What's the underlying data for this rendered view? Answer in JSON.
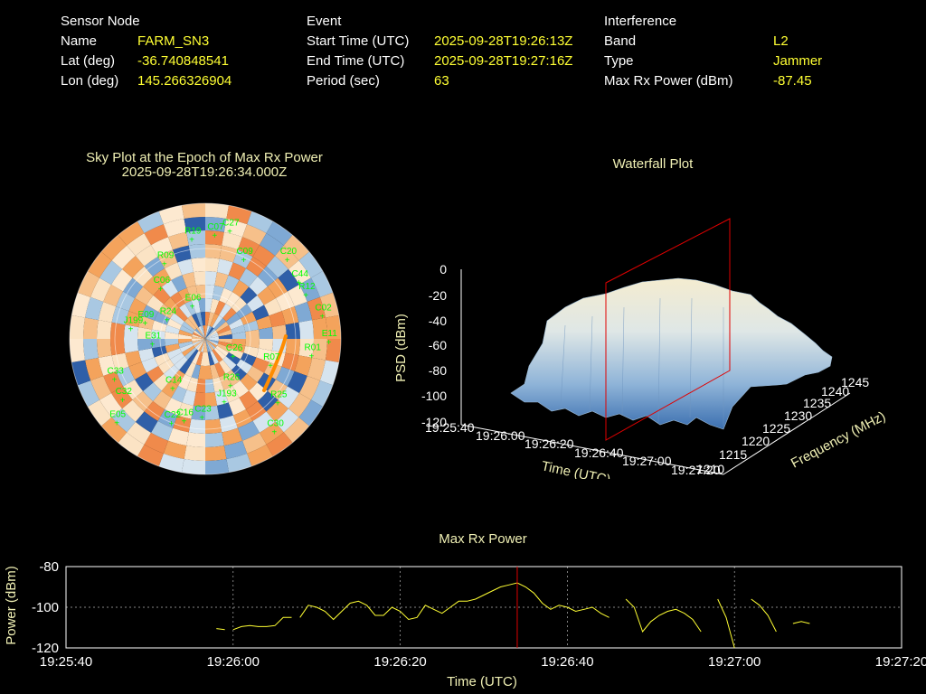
{
  "header": {
    "sensor": {
      "heading": "Sensor Node",
      "rows": [
        {
          "label": "Name",
          "value": "FARM_SN3"
        },
        {
          "label": "Lat (deg)",
          "value": "-36.740848541"
        },
        {
          "label": "Lon (deg)",
          "value": "145.266326904"
        }
      ]
    },
    "event": {
      "heading": "Event",
      "rows": [
        {
          "label": "Start Time (UTC)",
          "value": "2025-09-28T19:26:13Z"
        },
        {
          "label": "End Time (UTC)",
          "value": "2025-09-28T19:27:16Z"
        },
        {
          "label": "Period (sec)",
          "value": "63"
        }
      ]
    },
    "interference": {
      "heading": "Interference",
      "rows": [
        {
          "label": "Band",
          "value": "L2"
        },
        {
          "label": "Type",
          "value": "Jammer"
        },
        {
          "label": "Max Rx Power (dBm)",
          "value": "-87.45"
        }
      ]
    }
  },
  "skyplot": {
    "title": "Sky Plot at the Epoch of Max Rx Power",
    "subtitle": "2025-09-28T19:26:34.000Z",
    "satellites": [
      "E11",
      "E05",
      "C07",
      "C30",
      "J199",
      "C44",
      "C16",
      "R09",
      "R07",
      "C33",
      "C09",
      "J193",
      "R24",
      "C02",
      "C14",
      "R19",
      "R25",
      "E31",
      "C20",
      "C23",
      "C06",
      "R01",
      "C32",
      "C27",
      "R26",
      "E09",
      "R12",
      "C22",
      "E06",
      "C26"
    ]
  },
  "waterfall": {
    "title": "Waterfall Plot",
    "zlabel": "PSD (dBm)",
    "xlabel": "Time (UTC)",
    "ylabel": "Frequency (MHz)"
  },
  "chart_data": [
    {
      "type": "line",
      "title": "Max Rx Power",
      "xlabel": "Time (UTC)",
      "ylabel": "Power (dBm)",
      "xlim": [
        "19:25:40",
        "19:27:20"
      ],
      "ylim": [
        -120,
        -80
      ],
      "xticks": [
        "19:25:40",
        "19:26:00",
        "19:26:20",
        "19:26:40",
        "19:27:00",
        "19:27:20"
      ],
      "yticks": [
        -80,
        -100,
        -120
      ],
      "grid": true,
      "max_marker_time": "19:26:34",
      "segments": [
        [
          [
            "19:25:58",
            -110.5
          ],
          [
            "19:25:59",
            -111
          ]
        ],
        [
          [
            "19:26:00",
            -111
          ],
          [
            "19:26:01",
            -109.5
          ],
          [
            "19:26:02",
            -109
          ],
          [
            "19:26:03",
            -109.5
          ],
          [
            "19:26:04",
            -109.5
          ],
          [
            "19:26:05",
            -109
          ],
          [
            "19:26:06",
            -105
          ],
          [
            "19:26:07",
            -105
          ]
        ],
        [
          [
            "19:26:08",
            -105
          ],
          [
            "19:26:09",
            -99
          ],
          [
            "19:26:10",
            -100
          ],
          [
            "19:26:11",
            -102
          ],
          [
            "19:26:12",
            -106
          ],
          [
            "19:26:13",
            -102
          ],
          [
            "19:26:14",
            -98
          ],
          [
            "19:26:15",
            -97
          ],
          [
            "19:26:16",
            -99
          ],
          [
            "19:26:17",
            -104
          ],
          [
            "19:26:18",
            -104
          ],
          [
            "19:26:19",
            -100
          ],
          [
            "19:26:20",
            -102
          ],
          [
            "19:26:21",
            -106
          ],
          [
            "19:26:22",
            -105
          ],
          [
            "19:26:23",
            -99
          ],
          [
            "19:26:24",
            -101
          ],
          [
            "19:26:25",
            -103
          ],
          [
            "19:26:26",
            -100
          ],
          [
            "19:26:27",
            -97
          ],
          [
            "19:26:28",
            -97
          ],
          [
            "19:26:29",
            -96
          ],
          [
            "19:26:30",
            -94
          ],
          [
            "19:26:31",
            -92
          ],
          [
            "19:26:32",
            -90
          ],
          [
            "19:26:33",
            -89
          ],
          [
            "19:26:34",
            -88
          ],
          [
            "19:26:35",
            -90
          ],
          [
            "19:26:36",
            -93
          ],
          [
            "19:26:37",
            -98
          ],
          [
            "19:26:38",
            -101
          ],
          [
            "19:26:39",
            -99
          ],
          [
            "19:26:40",
            -100
          ],
          [
            "19:26:41",
            -102
          ],
          [
            "19:26:42",
            -101
          ],
          [
            "19:26:43",
            -100
          ],
          [
            "19:26:44",
            -103
          ],
          [
            "19:26:45",
            -105
          ]
        ],
        [
          [
            "19:26:47",
            -96
          ],
          [
            "19:26:48",
            -100
          ],
          [
            "19:26:49",
            -112
          ],
          [
            "19:26:50",
            -107
          ],
          [
            "19:26:51",
            -104
          ],
          [
            "19:26:52",
            -102
          ],
          [
            "19:26:53",
            -101
          ],
          [
            "19:26:54",
            -103
          ],
          [
            "19:26:55",
            -106
          ],
          [
            "19:26:56",
            -112
          ]
        ],
        [
          [
            "19:26:58",
            -96
          ],
          [
            "19:26:59",
            -105
          ],
          [
            "19:27:00",
            -121
          ]
        ],
        [
          [
            "19:27:02",
            -96
          ],
          [
            "19:27:03",
            -99
          ],
          [
            "19:27:04",
            -104
          ],
          [
            "19:27:05",
            -112
          ]
        ],
        [
          [
            "19:27:07",
            -108
          ],
          [
            "19:27:08",
            -107
          ],
          [
            "19:27:09",
            -108
          ]
        ]
      ]
    }
  ]
}
